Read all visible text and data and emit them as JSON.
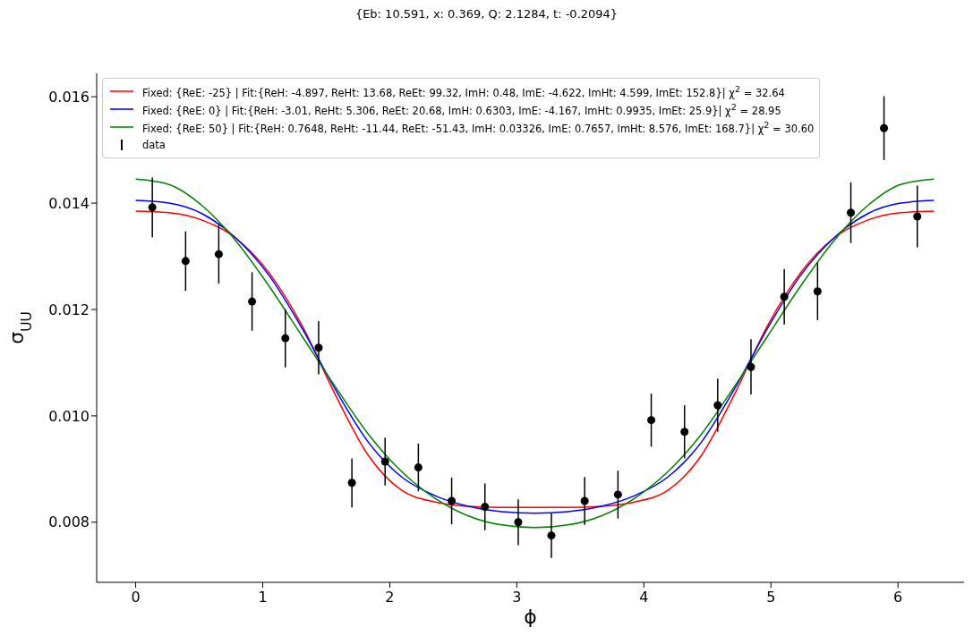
{
  "chart_data": {
    "type": "line",
    "title": "{Eb: 10.591, x: 0.369, Q: 2.1284, t: -0.2094}",
    "xlabel": "ϕ",
    "ylabel": "σ$_{UU}$",
    "xlim": [
      -0.307,
      6.52
    ],
    "xticks": [
      0,
      1,
      2,
      3,
      4,
      5,
      6
    ],
    "ylim": [
      0.00687,
      0.01644
    ],
    "yticks": [
      {
        "value": 0.008,
        "label": "0.008"
      },
      {
        "value": 0.01,
        "label": "0.010"
      },
      {
        "value": 0.012,
        "label": "0.012"
      },
      {
        "value": 0.014,
        "label": "0.014"
      },
      {
        "value": 0.016,
        "label": "0.016"
      }
    ],
    "grid": false,
    "legend": "top left",
    "marker": "none",
    "line_style": "solid",
    "series": [
      {
        "name": "Fixed: {ReE: -25} | Fit:{ReH: -4.897, ReHt: 13.68, ReEt: 99.32, ImH: 0.48, ImE: -4.622, ImHt: 4.599, ImEt: 152.8}| χ$^{2}$ = 32.64",
        "color": "#ff0000",
        "x": [
          0,
          0.262,
          0.524,
          0.785,
          1.047,
          1.309,
          1.571,
          1.833,
          2.094,
          2.356,
          2.618,
          2.88,
          3.142,
          3.403,
          3.665,
          3.927,
          4.189,
          4.451,
          4.712,
          4.974,
          5.236,
          5.498,
          5.76,
          6.021,
          6.283
        ],
        "values": [
          0.01385,
          0.01382,
          0.01368,
          0.01335,
          0.0127,
          0.0117,
          0.0104,
          0.00925,
          0.0086,
          0.00838,
          0.0083,
          0.00828,
          0.00828,
          0.00828,
          0.0083,
          0.00838,
          0.0086,
          0.00925,
          0.0104,
          0.0117,
          0.0127,
          0.01335,
          0.01368,
          0.01382,
          0.01385
        ]
      },
      {
        "name": "Fixed: {ReE: 0} | Fit:{ReH: -3.01, ReHt: 5.306, ReEt: 20.68, ImH: 0.6303, ImE: -4.167, ImHt: 0.9935, ImEt: 25.9}| χ$^{2}$ = 28.95",
        "color": "#0000ff",
        "x": [
          0,
          0.262,
          0.524,
          0.785,
          1.047,
          1.309,
          1.571,
          1.833,
          2.094,
          2.356,
          2.618,
          2.88,
          3.142,
          3.403,
          3.665,
          3.927,
          4.189,
          4.451,
          4.712,
          4.974,
          5.236,
          5.498,
          5.76,
          6.021,
          6.283
        ],
        "values": [
          0.01405,
          0.014,
          0.0138,
          0.01335,
          0.01265,
          0.01165,
          0.0105,
          0.0095,
          0.00885,
          0.0085,
          0.0083,
          0.0082,
          0.00817,
          0.0082,
          0.0083,
          0.0085,
          0.00885,
          0.0095,
          0.0105,
          0.01165,
          0.01265,
          0.01335,
          0.0138,
          0.014,
          0.01405
        ]
      },
      {
        "name": "Fixed: {ReE: 50} | Fit:{ReH: 0.7648, ReHt: -11.44, ReEt: -51.43, ImH: 0.03326, ImE: 0.7657, ImHt: 8.576, ImEt: 168.7}| χ$^{2}$ = 30.60",
        "color": "#008000",
        "x": [
          0,
          0.262,
          0.524,
          0.785,
          1.047,
          1.309,
          1.571,
          1.833,
          2.094,
          2.356,
          2.618,
          2.88,
          3.142,
          3.403,
          3.665,
          3.927,
          4.189,
          4.451,
          4.712,
          4.974,
          5.236,
          5.498,
          5.76,
          6.021,
          6.283
        ],
        "values": [
          0.01445,
          0.01435,
          0.01395,
          0.0133,
          0.01245,
          0.0115,
          0.01055,
          0.00965,
          0.00895,
          0.00845,
          0.00812,
          0.00795,
          0.0079,
          0.00795,
          0.00812,
          0.00845,
          0.00895,
          0.00965,
          0.01055,
          0.0115,
          0.01245,
          0.0133,
          0.01395,
          0.01435,
          0.01445
        ]
      },
      {
        "name": "data",
        "type": "scatter",
        "marker": "circle",
        "color": "#000000",
        "x": [
          0.131,
          0.393,
          0.654,
          0.916,
          1.178,
          1.44,
          1.702,
          1.963,
          2.225,
          2.487,
          2.749,
          3.011,
          3.272,
          3.534,
          3.796,
          4.058,
          4.32,
          4.581,
          4.843,
          5.105,
          5.367,
          5.629,
          5.89,
          6.152
        ],
        "values": [
          0.01392,
          0.01291,
          0.01304,
          0.01215,
          0.01146,
          0.01128,
          0.00874,
          0.00914,
          0.00903,
          0.0084,
          0.00829,
          0.008,
          0.00775,
          0.0084,
          0.00852,
          0.00992,
          0.0097,
          0.0102,
          0.01092,
          0.01224,
          0.01234,
          0.01382,
          0.01541,
          0.01375
        ],
        "errors": [
          0.00056,
          0.00056,
          0.00055,
          0.00055,
          0.00055,
          0.0005,
          0.00046,
          0.00045,
          0.00045,
          0.00044,
          0.00044,
          0.00043,
          0.00042,
          0.00045,
          0.00045,
          0.0005,
          0.0005,
          0.0005,
          0.00052,
          0.00052,
          0.00054,
          0.00057,
          0.0006,
          0.00058
        ]
      }
    ]
  }
}
